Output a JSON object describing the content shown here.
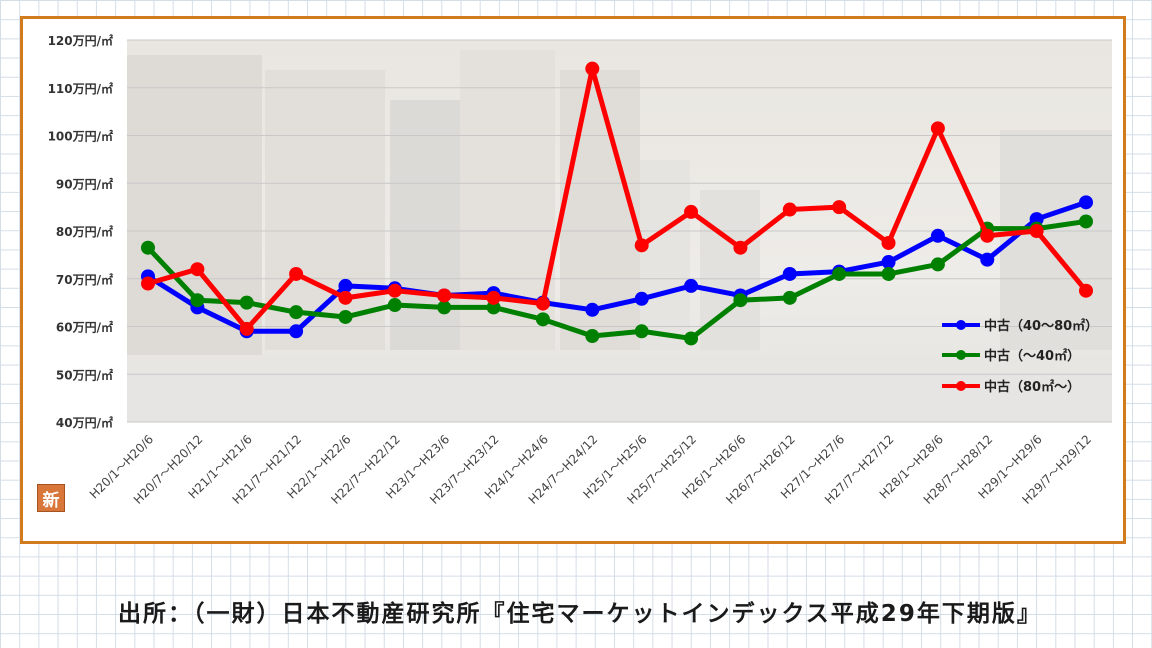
{
  "footer": {
    "source": "出所：（一財）日本不動産研究所『住宅マーケットインデックス平成29年下期版』"
  },
  "badge": {
    "label": "新"
  },
  "chart_data": {
    "type": "line",
    "title": "",
    "xlabel": "",
    "ylabel": "",
    "ylim": [
      40,
      120
    ],
    "yticks": [
      40,
      50,
      60,
      70,
      80,
      90,
      100,
      110,
      120
    ],
    "ytick_labels": [
      "40万円/㎡",
      "50万円/㎡",
      "60万円/㎡",
      "70万円/㎡",
      "80万円/㎡",
      "90万円/㎡",
      "100万円/㎡",
      "110万円/㎡",
      "120万円/㎡"
    ],
    "grid": true,
    "legend_position": "right",
    "categories": [
      "H20/1～H20/6",
      "H20/7～H20/12",
      "H21/1～H21/6",
      "H21/7～H21/12",
      "H22/1～H22/6",
      "H22/7～H22/12",
      "H23/1～H23/6",
      "H23/7～H23/12",
      "H24/1～H24/6",
      "H24/7～H24/12",
      "H25/1～H25/6",
      "H25/7～H25/12",
      "H26/1～H26/6",
      "H26/7～H26/12",
      "H27/1～H27/6",
      "H27/7～H27/12",
      "H28/1～H28/6",
      "H28/7～H28/12",
      "H29/1～H29/6",
      "H29/7～H29/12"
    ],
    "series": [
      {
        "name": "中古（40～80㎡）",
        "color": "#0000ff",
        "values": [
          70.5,
          64.0,
          59.0,
          59.0,
          68.5,
          68.0,
          66.5,
          67.0,
          65.0,
          63.5,
          65.8,
          68.5,
          66.5,
          71.0,
          71.5,
          73.5,
          79.0,
          74.0,
          82.5,
          86.0
        ]
      },
      {
        "name": "中古（～40㎡）",
        "color": "#008000",
        "values": [
          76.5,
          65.5,
          65.0,
          63.0,
          62.0,
          64.5,
          64.0,
          64.0,
          61.5,
          58.0,
          59.0,
          57.5,
          65.5,
          66.0,
          71.0,
          71.0,
          73.0,
          80.5,
          80.5,
          82.0
        ]
      },
      {
        "name": "中古（80㎡～）",
        "color": "#ff0000",
        "values": [
          69.0,
          72.0,
          59.5,
          71.0,
          66.0,
          67.5,
          66.5,
          66.0,
          64.8,
          114.0,
          77.0,
          84.0,
          76.5,
          84.5,
          85.0,
          77.5,
          101.5,
          79.0,
          80.0,
          67.5
        ]
      }
    ]
  }
}
